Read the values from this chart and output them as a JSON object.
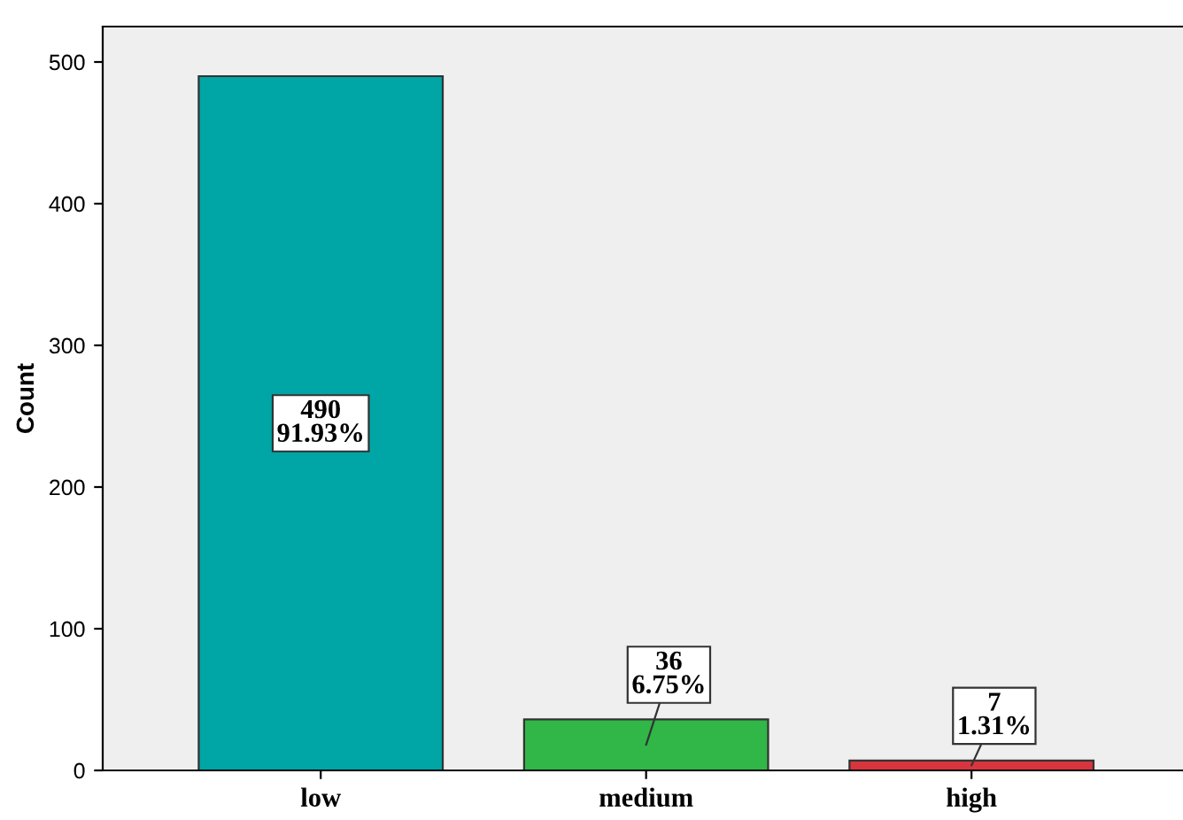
{
  "chart_data": {
    "type": "bar",
    "ylabel": "Count",
    "categories": [
      "low",
      "medium",
      "high"
    ],
    "values": [
      490,
      36,
      7
    ],
    "colors": [
      "#00a5a5",
      "#31b748",
      "#d8353e"
    ],
    "value_labels": [
      "490\n91.93%",
      "36\n6.75%",
      "7\n1.31%"
    ],
    "ylim": [
      0,
      525
    ],
    "yticks": [
      0,
      100,
      200,
      300,
      400,
      500
    ],
    "grid": false,
    "legend": false
  }
}
